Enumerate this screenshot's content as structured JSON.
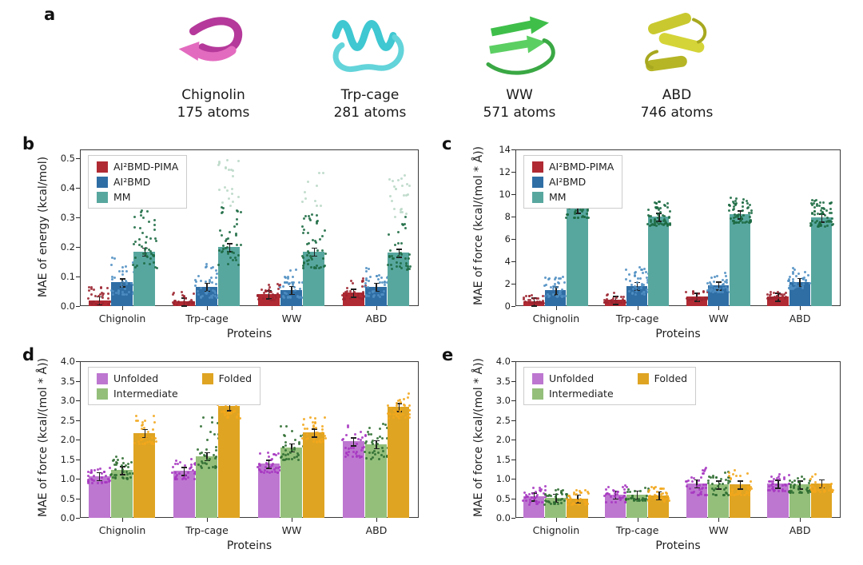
{
  "panels": {
    "a": "a",
    "b": "b",
    "c": "c",
    "d": "d",
    "e": "e"
  },
  "proteins": [
    {
      "name": "Chignolin",
      "atoms": "175 atoms",
      "color": "#c647a4"
    },
    {
      "name": "Trp-cage",
      "atoms": "281 atoms",
      "color": "#43c9d2"
    },
    {
      "name": "WW",
      "atoms": "571 atoms",
      "color": "#46c24e"
    },
    {
      "name": "ABD",
      "atoms": "746 atoms",
      "color": "#c6c62f"
    }
  ],
  "chart_data": [
    {
      "id": "b",
      "type": "bar",
      "title": "",
      "categories": [
        "Chignolin",
        "Trp-cage",
        "WW",
        "ABD"
      ],
      "xlabel": "Proteins",
      "ylabel": "MAE of energy (kcal/mol)",
      "ylim": [
        0,
        0.53
      ],
      "yticks": [
        0,
        0.1,
        0.2,
        0.3,
        0.4,
        0.5
      ],
      "ytick_decimals": 1,
      "legend_columns": 1,
      "series": [
        {
          "name": "AI²BMD-PIMA",
          "color": "#b02a33",
          "dot_color": "#9c2430",
          "values": [
            0.02,
            0.015,
            0.04,
            0.045
          ],
          "scatter_lo": [
            0.006,
            0.004,
            0.02,
            0.022
          ],
          "scatter_hi": [
            0.065,
            0.05,
            0.08,
            0.095
          ],
          "n_dots": 30
        },
        {
          "name": "AI²BMD",
          "color": "#2f6ea5",
          "dot_color": "#4e8ec2",
          "values": [
            0.08,
            0.065,
            0.055,
            0.065
          ],
          "scatter_lo": [
            0.038,
            0.028,
            0.028,
            0.032
          ],
          "scatter_hi": [
            0.165,
            0.155,
            0.125,
            0.135
          ],
          "n_dots": 40
        },
        {
          "name": "MM",
          "color": "#58a79f",
          "dot_color": "#1d6b43",
          "tail_color": "#b9d8c6",
          "values": [
            0.185,
            0.2,
            0.185,
            0.18
          ],
          "scatter_lo": [
            0.128,
            0.138,
            0.128,
            0.122
          ],
          "scatter_hi": [
            0.505,
            0.5,
            0.465,
            0.45
          ],
          "n_dots": 60
        }
      ]
    },
    {
      "id": "c",
      "type": "bar",
      "title": "",
      "categories": [
        "Chignolin",
        "Trp-cage",
        "WW",
        "ABD"
      ],
      "xlabel": "Proteins",
      "ylabel": "MAE of force (kcal/(mol * Å))",
      "ylim": [
        0,
        14
      ],
      "yticks": [
        0,
        2,
        4,
        6,
        8,
        10,
        12,
        14
      ],
      "ytick_decimals": 0,
      "legend_columns": 1,
      "series": [
        {
          "name": "AI²BMD-PIMA",
          "color": "#b02a33",
          "dot_color": "#9c2430",
          "values": [
            0.4,
            0.55,
            0.85,
            0.85
          ],
          "scatter_lo": [
            0.22,
            0.3,
            0.55,
            0.6
          ],
          "scatter_hi": [
            0.95,
            1.15,
            1.35,
            1.3
          ],
          "n_dots": 30
        },
        {
          "name": "AI²BMD",
          "color": "#2f6ea5",
          "dot_color": "#4e8ec2",
          "values": [
            1.4,
            1.8,
            1.85,
            2.15
          ],
          "scatter_lo": [
            0.85,
            1.05,
            1.25,
            1.5
          ],
          "scatter_hi": [
            2.6,
            3.6,
            3.0,
            3.4
          ],
          "n_dots": 40
        },
        {
          "name": "MM",
          "color": "#58a79f",
          "dot_color": "#1d6b43",
          "values": [
            8.7,
            8.0,
            8.2,
            7.9
          ],
          "scatter_lo": [
            7.9,
            7.2,
            7.4,
            7.1
          ],
          "scatter_hi": [
            10.4,
            9.4,
            9.7,
            9.5
          ],
          "n_dots": 60
        }
      ]
    },
    {
      "id": "d",
      "type": "bar",
      "title": "",
      "categories": [
        "Chignolin",
        "Trp-cage",
        "WW",
        "ABD"
      ],
      "xlabel": "Proteins",
      "ylabel": "MAE of force (kcal/(mol * Å))",
      "ylim": [
        0,
        4.0
      ],
      "yticks": [
        0,
        0.5,
        1.0,
        1.5,
        2.0,
        2.5,
        3.0,
        3.5,
        4.0
      ],
      "ytick_decimals": 1,
      "legend_columns": 2,
      "series": [
        {
          "name": "Unfolded",
          "color": "#bd77d0",
          "dot_color": "#a637c0",
          "values": [
            1.07,
            1.2,
            1.38,
            1.95
          ],
          "scatter_lo": [
            0.88,
            0.98,
            1.15,
            1.55
          ],
          "scatter_hi": [
            1.32,
            1.5,
            1.68,
            2.35
          ],
          "n_dots": 35
        },
        {
          "name": "Intermediate",
          "color": "#94bf7b",
          "dot_color": "#2f6d31",
          "values": [
            1.22,
            1.58,
            1.8,
            1.88
          ],
          "scatter_lo": [
            0.98,
            1.28,
            1.48,
            1.5
          ],
          "scatter_hi": [
            1.58,
            2.62,
            2.38,
            2.42
          ],
          "n_dots": 35
        },
        {
          "name": "Folded",
          "color": "#dfa422",
          "dot_color": "#f2a71c",
          "values": [
            2.17,
            2.85,
            2.18,
            2.83
          ],
          "scatter_lo": [
            1.88,
            2.55,
            1.92,
            2.52
          ],
          "scatter_hi": [
            2.62,
            3.28,
            2.58,
            3.22
          ],
          "n_dots": 35
        }
      ]
    },
    {
      "id": "e",
      "type": "bar",
      "title": "",
      "categories": [
        "Chignolin",
        "Trp-cage",
        "WW",
        "ABD"
      ],
      "xlabel": "Proteins",
      "ylabel": "MAE of force (kcal/(mol * Å))",
      "ylim": [
        0,
        4.0
      ],
      "yticks": [
        0,
        0.5,
        1.0,
        1.5,
        2.0,
        2.5,
        3.0,
        3.5,
        4.0
      ],
      "ytick_decimals": 1,
      "legend_columns": 2,
      "series": [
        {
          "name": "Unfolded",
          "color": "#bd77d0",
          "dot_color": "#a637c0",
          "values": [
            0.55,
            0.6,
            0.88,
            0.87
          ],
          "scatter_lo": [
            0.34,
            0.4,
            0.58,
            0.68
          ],
          "scatter_hi": [
            0.82,
            0.88,
            1.32,
            1.12
          ],
          "n_dots": 35
        },
        {
          "name": "Intermediate",
          "color": "#94bf7b",
          "dot_color": "#2f6d31",
          "values": [
            0.52,
            0.6,
            0.85,
            0.85
          ],
          "scatter_lo": [
            0.34,
            0.44,
            0.58,
            0.64
          ],
          "scatter_hi": [
            0.72,
            0.82,
            1.18,
            1.06
          ],
          "n_dots": 35
        },
        {
          "name": "Folded",
          "color": "#dfa422",
          "dot_color": "#f2a71c",
          "values": [
            0.5,
            0.58,
            0.85,
            0.88
          ],
          "scatter_lo": [
            0.33,
            0.42,
            0.58,
            0.66
          ],
          "scatter_hi": [
            0.7,
            0.8,
            1.22,
            1.12
          ],
          "n_dots": 35
        }
      ]
    }
  ]
}
